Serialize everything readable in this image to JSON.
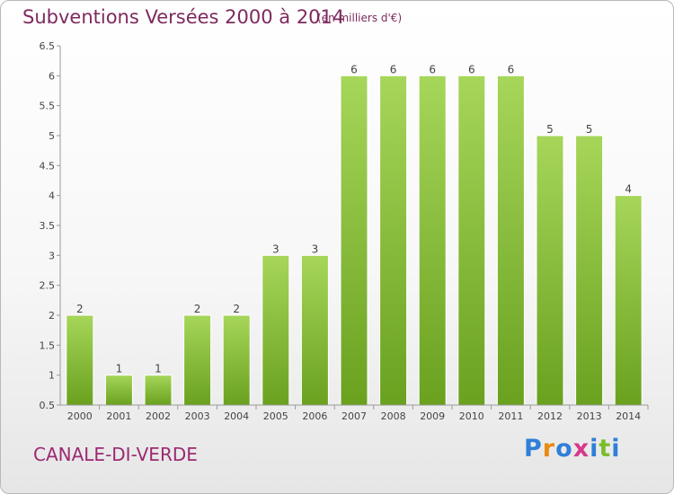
{
  "header": {
    "title": "Subventions Versées 2000 à 2014",
    "subtitle": "(en milliers d'€)"
  },
  "footer": {
    "location": "CANALE-DI-VERDE",
    "logo_text": "Proxiti"
  },
  "colors": {
    "bar_light": "#a6d65a",
    "bar_dark": "#6aa11f",
    "title": "#7e2a5e",
    "logo": [
      "#2f7fd8",
      "#e88b12",
      "#2f7fd8",
      "#d63a8a",
      "#2f7fd8",
      "#7cbd2a",
      "#2f7fd8"
    ]
  },
  "chart_data": {
    "type": "bar",
    "title": "Subventions Versées 2000 à 2014",
    "subtitle": "(en milliers d'€)",
    "categories": [
      "2000",
      "2001",
      "2002",
      "2003",
      "2004",
      "2005",
      "2006",
      "2007",
      "2008",
      "2009",
      "2010",
      "2011",
      "2012",
      "2013",
      "2014"
    ],
    "values": [
      2,
      1,
      1,
      2,
      2,
      3,
      3,
      6,
      6,
      6,
      6,
      6,
      5,
      5,
      4
    ],
    "data_labels": [
      "2",
      "1",
      "1",
      "2",
      "2",
      "3",
      "3",
      "6",
      "6",
      "6",
      "6",
      "6",
      "5",
      "5",
      "4"
    ],
    "yticks": [
      "0.5",
      "1",
      "1.5",
      "2",
      "2.5",
      "3",
      "3.5",
      "4",
      "4.5",
      "5",
      "5.5",
      "6",
      "6.5"
    ],
    "ylim": [
      0.5,
      6.5
    ],
    "grid": false,
    "legend": "none"
  }
}
